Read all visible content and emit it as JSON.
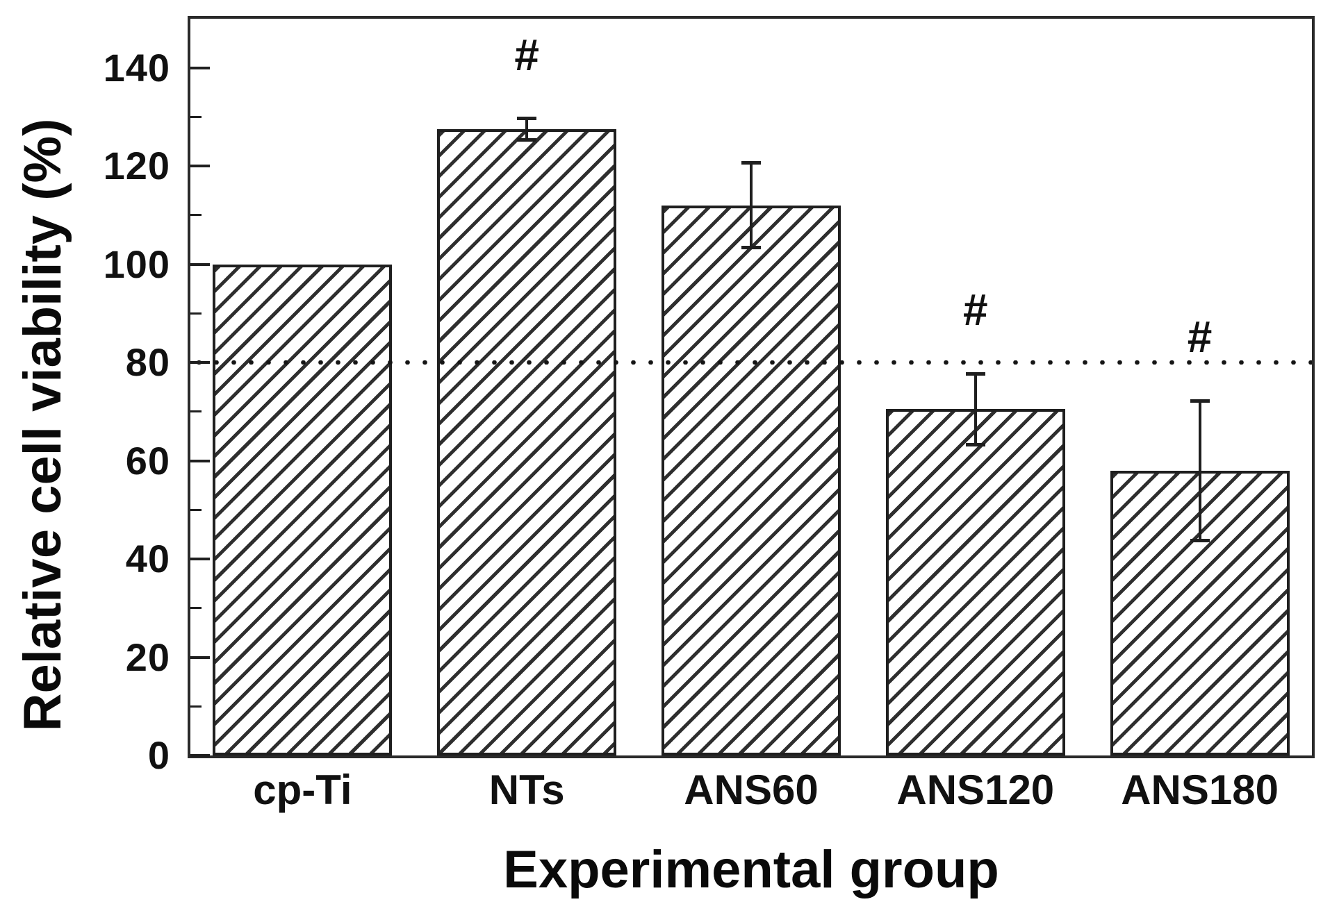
{
  "figure": {
    "background": "#ffffff",
    "ink_color": "#1f1f1f"
  },
  "chart_data": {
    "type": "bar",
    "xlabel": "Experimental group",
    "ylabel": "Relative cell viability (%)",
    "categories": [
      "cp-Ti",
      "NTs",
      "ANS60",
      "ANS120",
      "ANS180"
    ],
    "values": [
      100,
      127.5,
      112,
      70.5,
      58
    ],
    "errors": [
      0,
      2.2,
      8.6,
      7.2,
      14.2
    ],
    "annotations": [
      {
        "category": "NTs",
        "text": "#"
      },
      {
        "category": "ANS120",
        "text": "#"
      },
      {
        "category": "ANS180",
        "text": "#"
      }
    ],
    "reference_line": {
      "y": 80,
      "style": "dotted"
    },
    "ylim": [
      0,
      150
    ],
    "yticks_major": [
      0,
      20,
      40,
      60,
      80,
      100,
      120,
      140
    ],
    "yticks_minor": [
      10,
      30,
      50,
      70,
      90,
      110,
      130
    ],
    "grid": false,
    "legend_position": "none",
    "bar_style": {
      "fill": "#ffffff",
      "hatch": "diagonal-forward",
      "edge": "#1f1f1f"
    }
  }
}
